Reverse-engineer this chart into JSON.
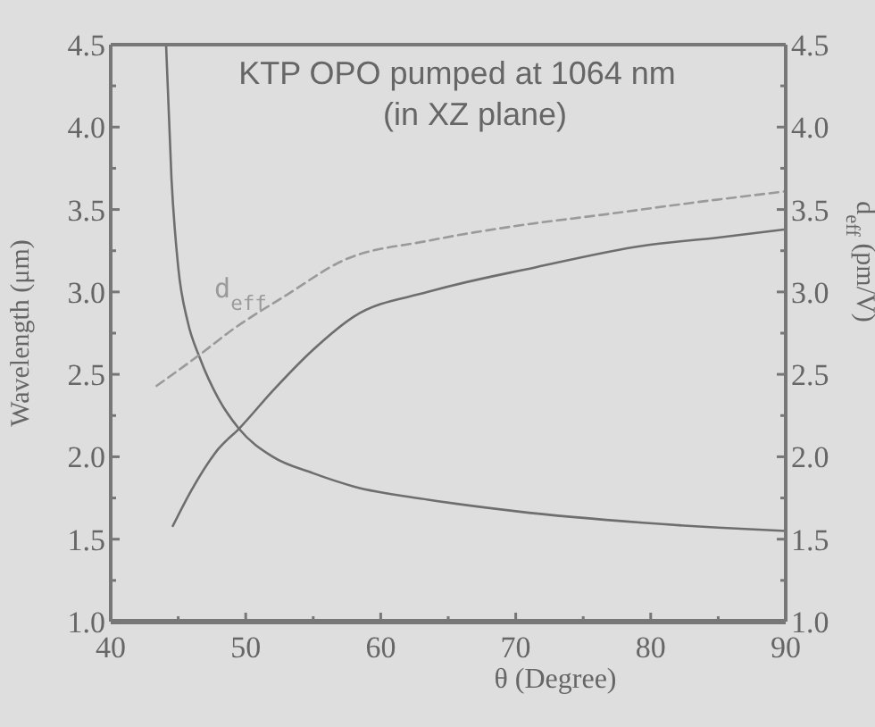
{
  "chart_data": {
    "type": "line",
    "title": "KTP OPO pumped at 1064 nm",
    "subtitle": "(in XZ plane)",
    "xlabel": "θ (Degree)",
    "ylabel": "Wavelength (μm)",
    "y2label": "d$_{eff}$ (pm/V)",
    "series": [
      {
        "color": "#6e6e6e",
        "line_style": "solid",
        "x": [
          44.1,
          44.5,
          45.0,
          45.7,
          46.6,
          48.0,
          49.5,
          52.0,
          55.0,
          58.0,
          63.5,
          70.0,
          79.4,
          85.0,
          90.0
        ],
        "values": [
          4.5,
          3.69,
          3.15,
          2.82,
          2.6,
          2.35,
          2.17,
          2.0,
          1.9,
          1.82,
          1.74,
          1.67,
          1.6,
          1.57,
          1.55
        ]
      },
      {
        "color": "#6e6e6e",
        "line_style": "solid",
        "x": [
          44.6,
          46.0,
          48.0,
          49.5,
          52.0,
          55.0,
          58.0,
          63.5,
          71.5,
          79.4,
          85.0,
          90.0
        ],
        "values": [
          1.58,
          1.8,
          2.05,
          2.17,
          2.4,
          2.65,
          2.85,
          3.0,
          3.15,
          3.28,
          3.33,
          3.38
        ]
      },
      {
        "name": "d$_{eff}$",
        "color": "#9a9a9a",
        "line_style": "dashed",
        "axis": "y2",
        "x": [
          43.4,
          46.6,
          49.0,
          53.0,
          57.2,
          63.5,
          70.0,
          76.6,
          83.0,
          90.0
        ],
        "values": [
          2.43,
          2.62,
          2.77,
          2.98,
          3.19,
          3.31,
          3.4,
          3.47,
          3.54,
          3.61
        ]
      }
    ],
    "xlim": [
      40,
      90
    ],
    "xticks": [
      40,
      {
        "value": 45,
        "label": null
      },
      50,
      {
        "value": 55,
        "label": null
      },
      60,
      {
        "value": 65,
        "label": null
      },
      70,
      {
        "value": 75,
        "label": null
      },
      80,
      {
        "value": 85,
        "label": null
      },
      90
    ],
    "ylim": [
      1.0,
      4.5
    ],
    "yticks": [
      {
        "value": 1.0,
        "label": "1.0"
      },
      {
        "value": 1.25,
        "label": null
      },
      1.5,
      {
        "value": 1.75,
        "label": null
      },
      {
        "value": 2.0,
        "label": "2.0"
      },
      {
        "value": 2.25,
        "label": null
      },
      2.5,
      {
        "value": 2.75,
        "label": null
      },
      {
        "value": 3.0,
        "label": "3.0"
      },
      {
        "value": 3.25,
        "label": null
      },
      3.5,
      {
        "value": 3.75,
        "label": null
      },
      {
        "value": 4.0,
        "label": "4.0"
      },
      {
        "value": 4.25,
        "label": null
      },
      4.5
    ],
    "y2lim": [
      1.0,
      4.5
    ],
    "y2ticks": [
      {
        "value": 1.0,
        "label": "1.0"
      },
      {
        "value": 1.25,
        "label": null
      },
      1.5,
      {
        "value": 1.75,
        "label": null
      },
      {
        "value": 2.0,
        "label": "2.0"
      },
      {
        "value": 2.25,
        "label": null
      },
      2.5,
      {
        "value": 2.75,
        "label": null
      },
      {
        "value": 3.0,
        "label": "3.0"
      },
      {
        "value": 3.25,
        "label": null
      },
      3.5,
      {
        "value": 3.75,
        "label": null
      },
      {
        "value": 4.0,
        "label": "4.0"
      },
      {
        "value": 4.25,
        "label": null
      },
      4.5
    ],
    "grid": false,
    "legend": false,
    "marker": "none"
  }
}
